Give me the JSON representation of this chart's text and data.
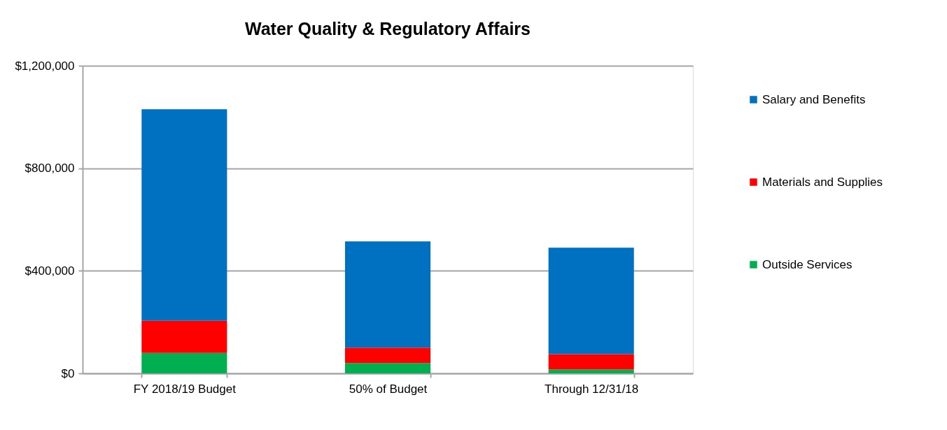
{
  "chart_data": {
    "type": "bar",
    "title": "Water Quality & Regulatory Affairs",
    "categories": [
      "FY 2018/19 Budget",
      "50% of Budget",
      "Through 12/31/18"
    ],
    "series": [
      {
        "name": "Outside Services",
        "color": "#00b050",
        "values": [
          80000,
          40000,
          15000
        ]
      },
      {
        "name": "Materials and Supplies",
        "color": "#ff0000",
        "values": [
          125000,
          60000,
          60000
        ]
      },
      {
        "name": "Salary and Benefits",
        "color": "#0070c0",
        "values": [
          825000,
          415000,
          415000
        ]
      }
    ],
    "stacked": true,
    "ylim": [
      0,
      1200000
    ],
    "yticks": [
      {
        "value": 0,
        "label": "$0"
      },
      {
        "value": 400000,
        "label": "$400,000"
      },
      {
        "value": 800000,
        "label": "$800,000"
      },
      {
        "value": 1200000,
        "label": "$1,200,000"
      }
    ],
    "grid": "y",
    "legend": "right"
  }
}
